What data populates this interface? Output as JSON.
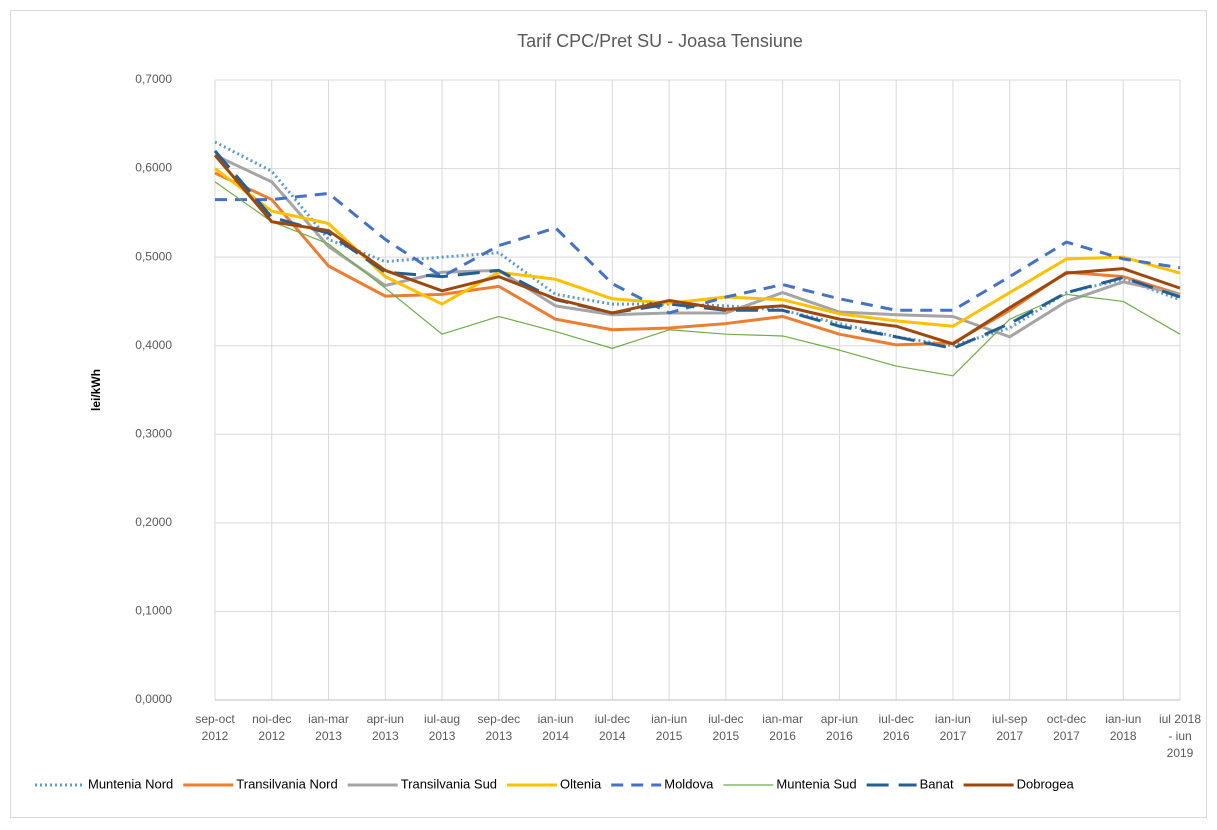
{
  "chart_data": {
    "type": "line",
    "title": "Tarif CPC/Pret SU - Joasa Tensiune",
    "y_label": "lei/kWh",
    "categories": [
      [
        "sep-oct",
        "2012"
      ],
      [
        "noi-dec",
        "2012"
      ],
      [
        "ian-mar",
        "2013"
      ],
      [
        "apr-iun",
        "2013"
      ],
      [
        "iul-aug",
        "2013"
      ],
      [
        "sep-dec",
        "2013"
      ],
      [
        "ian-iun",
        "2014"
      ],
      [
        "iul-dec",
        "2014"
      ],
      [
        "ian-iun",
        "2015"
      ],
      [
        "iul-dec",
        "2015"
      ],
      [
        "ian-mar",
        "2016"
      ],
      [
        "apr-iun",
        "2016"
      ],
      [
        "iul-dec",
        "2016"
      ],
      [
        "ian-iun",
        "2017"
      ],
      [
        "iul-sep",
        "2017"
      ],
      [
        "oct-dec",
        "2017"
      ],
      [
        "ian-iun",
        "2018"
      ],
      [
        "iul 2018",
        "- iun",
        "2019"
      ]
    ],
    "ylim": [
      0,
      0.7
    ],
    "yticks": [
      {
        "value": 0,
        "label": "0,0000"
      },
      {
        "value": 0.1,
        "label": "0,1000"
      },
      {
        "value": 0.2,
        "label": "0,2000"
      },
      {
        "value": 0.3,
        "label": "0,3000"
      },
      {
        "value": 0.4,
        "label": "0,4000"
      },
      {
        "value": 0.5,
        "label": "0,5000"
      },
      {
        "value": 0.6,
        "label": "0,6000"
      },
      {
        "value": 0.7,
        "label": "0,7000"
      }
    ],
    "grid": true,
    "legend": "bottom",
    "series": [
      {
        "name": "Muntenia Nord",
        "color": "#5b9bd5",
        "style": "dotted",
        "values": [
          0.63,
          0.597,
          0.52,
          0.495,
          0.5,
          0.505,
          0.458,
          0.447,
          0.447,
          0.445,
          0.44,
          0.425,
          0.41,
          0.4,
          0.42,
          0.46,
          0.475,
          0.452
        ]
      },
      {
        "name": "Transilvania Nord",
        "color": "#ed7d31",
        "style": "solid",
        "values": [
          0.595,
          0.565,
          0.49,
          0.456,
          0.458,
          0.467,
          0.43,
          0.418,
          0.42,
          0.425,
          0.433,
          0.413,
          0.401,
          0.403,
          0.44,
          0.483,
          0.478,
          0.458
        ]
      },
      {
        "name": "Transilvania Sud",
        "color": "#a5a5a5",
        "style": "solid",
        "values": [
          0.615,
          0.585,
          0.512,
          0.468,
          0.483,
          0.485,
          0.445,
          0.435,
          0.437,
          0.437,
          0.46,
          0.438,
          0.435,
          0.433,
          0.41,
          0.45,
          0.472,
          0.458
        ]
      },
      {
        "name": "Oltenia",
        "color": "#ffc000",
        "style": "solid",
        "values": [
          0.6,
          0.552,
          0.538,
          0.478,
          0.447,
          0.483,
          0.475,
          0.453,
          0.448,
          0.455,
          0.452,
          0.436,
          0.428,
          0.422,
          0.46,
          0.498,
          0.5,
          0.482
        ]
      },
      {
        "name": "Moldova",
        "color": "#4472c4",
        "style": "dashed",
        "values": [
          0.565,
          0.565,
          0.572,
          0.52,
          0.478,
          0.513,
          0.533,
          0.47,
          0.437,
          0.455,
          0.469,
          0.453,
          0.44,
          0.44,
          0.478,
          0.517,
          0.498,
          0.488
        ]
      },
      {
        "name": "Muntenia Sud",
        "color": "#70ad47",
        "style": "thin",
        "values": [
          0.585,
          0.54,
          0.515,
          0.465,
          0.413,
          0.433,
          0.416,
          0.397,
          0.418,
          0.413,
          0.411,
          0.395,
          0.377,
          0.366,
          0.43,
          0.458,
          0.45,
          0.413
        ]
      },
      {
        "name": "Banat",
        "color": "#255e91",
        "style": "longdash",
        "values": [
          0.62,
          0.545,
          0.527,
          0.483,
          0.478,
          0.485,
          0.452,
          0.437,
          0.447,
          0.44,
          0.44,
          0.422,
          0.41,
          0.397,
          0.425,
          0.46,
          0.477,
          0.455
        ]
      },
      {
        "name": "Dobrogea",
        "color": "#9e480e",
        "style": "solid",
        "values": [
          0.615,
          0.54,
          0.53,
          0.485,
          0.462,
          0.478,
          0.453,
          0.437,
          0.451,
          0.441,
          0.445,
          0.43,
          0.422,
          0.402,
          0.443,
          0.482,
          0.487,
          0.465
        ]
      }
    ]
  }
}
